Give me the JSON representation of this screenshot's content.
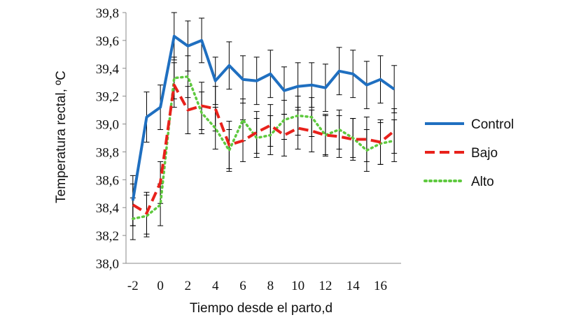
{
  "chart_data": {
    "type": "line",
    "title": "",
    "xlabel": "Tiempo desde el parto,d",
    "ylabel": "Temperatura rectal, ºC",
    "xlim": [
      -2,
      17
    ],
    "ylim": [
      38.0,
      39.8
    ],
    "x_ticks": [
      -2,
      0,
      2,
      4,
      6,
      8,
      10,
      12,
      14,
      16
    ],
    "x_tick_labels": [
      "-2",
      "0",
      "2",
      "4",
      "6",
      "8",
      "10",
      "12",
      "14",
      "16"
    ],
    "y_ticks": [
      38.0,
      38.2,
      38.4,
      38.6,
      38.8,
      39.0,
      39.2,
      39.4,
      39.6,
      39.8
    ],
    "y_tick_labels": [
      "38,0",
      "38,2",
      "38,4",
      "38,6",
      "38,8",
      "39,0",
      "39,2",
      "39,4",
      "39,6",
      "39,8"
    ],
    "grid": false,
    "legend_position": "right",
    "x": [
      -2,
      -1,
      0,
      1,
      2,
      3,
      4,
      5,
      6,
      7,
      8,
      9,
      10,
      11,
      12,
      13,
      14,
      15,
      16,
      17
    ],
    "series": [
      {
        "name": "Control",
        "color": "#1f6fc0",
        "style": "solid",
        "values": [
          38.45,
          39.05,
          39.12,
          39.63,
          39.56,
          39.6,
          39.31,
          39.42,
          39.32,
          39.31,
          39.36,
          39.24,
          39.27,
          39.28,
          39.26,
          39.38,
          39.36,
          39.28,
          39.32,
          39.25
        ],
        "errors": [
          0.18,
          0.18,
          0.16,
          0.17,
          0.18,
          0.16,
          0.17,
          0.17,
          0.17,
          0.17,
          0.17,
          0.17,
          0.17,
          0.16,
          0.17,
          0.17,
          0.17,
          0.17,
          0.17,
          0.17
        ]
      },
      {
        "name": "Bajo",
        "color": "#e8211b",
        "style": "dashed",
        "values": [
          38.42,
          38.36,
          38.58,
          39.28,
          39.1,
          39.13,
          39.11,
          38.85,
          38.88,
          38.94,
          38.99,
          38.92,
          38.97,
          38.95,
          38.92,
          38.91,
          38.89,
          38.89,
          38.87,
          38.95
        ],
        "errors": [
          0.15,
          0.15,
          0.15,
          0.16,
          0.17,
          0.17,
          0.16,
          0.17,
          0.15,
          0.15,
          0.15,
          0.15,
          0.15,
          0.15,
          0.15,
          0.15,
          0.15,
          0.16,
          0.16,
          0.16
        ]
      },
      {
        "name": "Alto",
        "color": "#5ec93e",
        "style": "dotted",
        "values": [
          38.32,
          38.34,
          38.42,
          39.33,
          39.34,
          39.08,
          38.97,
          38.81,
          39.03,
          38.9,
          38.92,
          39.03,
          39.06,
          39.05,
          38.92,
          38.96,
          38.9,
          38.81,
          38.86,
          38.88
        ],
        "errors": [
          0.15,
          0.15,
          0.15,
          0.15,
          0.15,
          0.15,
          0.15,
          0.15,
          0.15,
          0.14,
          0.14,
          0.14,
          0.14,
          0.14,
          0.14,
          0.14,
          0.14,
          0.15,
          0.15,
          0.15
        ]
      }
    ]
  }
}
